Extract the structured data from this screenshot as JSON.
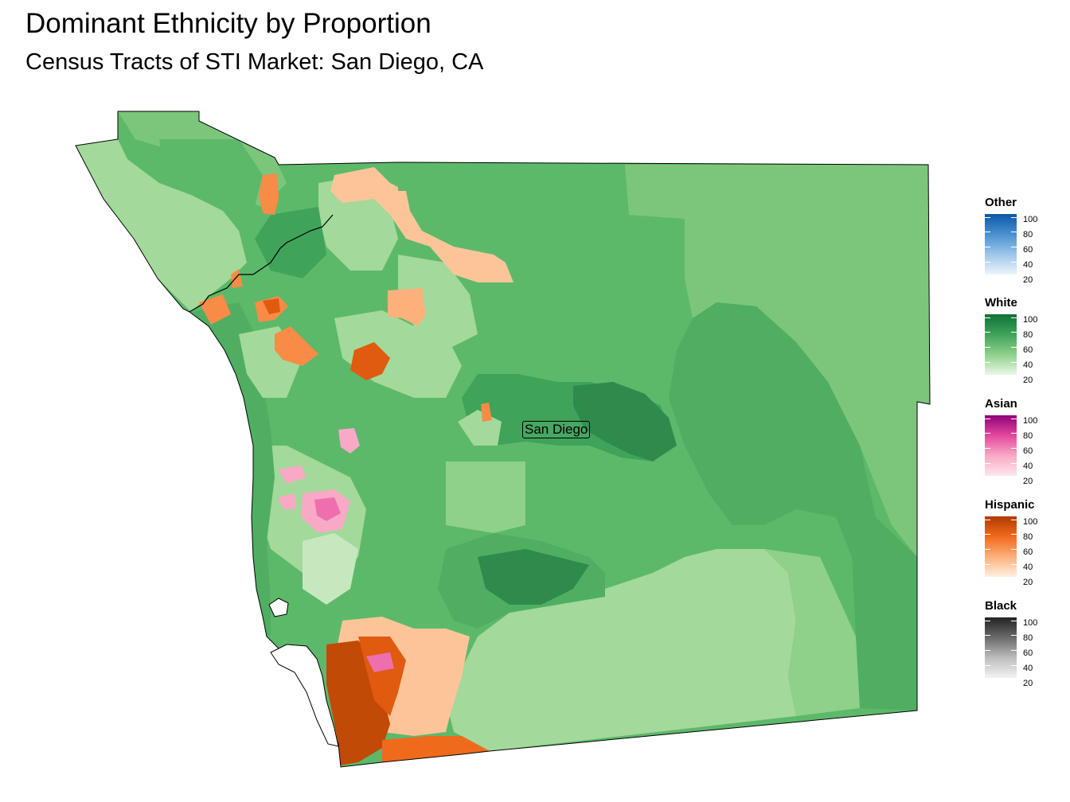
{
  "title": "Dominant Ethnicity by Proportion",
  "subtitle": "Census Tracts of STI Market: San Diego, CA",
  "map_label": "San Diego",
  "legend": [
    {
      "name": "Other",
      "ticks": [
        "100",
        "80",
        "60",
        "40",
        "20"
      ],
      "color_low": "#eef4fb",
      "color_high": "#0b58a6"
    },
    {
      "name": "White",
      "ticks": [
        "100",
        "80",
        "60",
        "40",
        "20"
      ],
      "color_low": "#eaf7e6",
      "color_high": "#0f7236"
    },
    {
      "name": "Asian",
      "ticks": [
        "100",
        "80",
        "60",
        "40",
        "20"
      ],
      "color_low": "#fde6ec",
      "color_high": "#8e0178"
    },
    {
      "name": "Hispanic",
      "ticks": [
        "100",
        "80",
        "60",
        "40",
        "20"
      ],
      "color_low": "#fff0e2",
      "color_high": "#b13a03"
    },
    {
      "name": "Black",
      "ticks": [
        "100",
        "80",
        "60",
        "40",
        "20"
      ],
      "color_low": "#f3f3f3",
      "color_high": "#232323"
    }
  ],
  "colors": {
    "white_light": "#a3d99a",
    "white_mid": "#7cc67c",
    "white_med": "#5cb96a",
    "white_dark": "#3fa35a",
    "white_darker": "#2e8b4c",
    "hispanic_light": "#fdc597",
    "hispanic_mid": "#f88b45",
    "hispanic_dark": "#e05a10",
    "hispanic_darker": "#c04a06",
    "asian_light": "#f9a9c6",
    "asian_mid": "#ee6fae"
  }
}
